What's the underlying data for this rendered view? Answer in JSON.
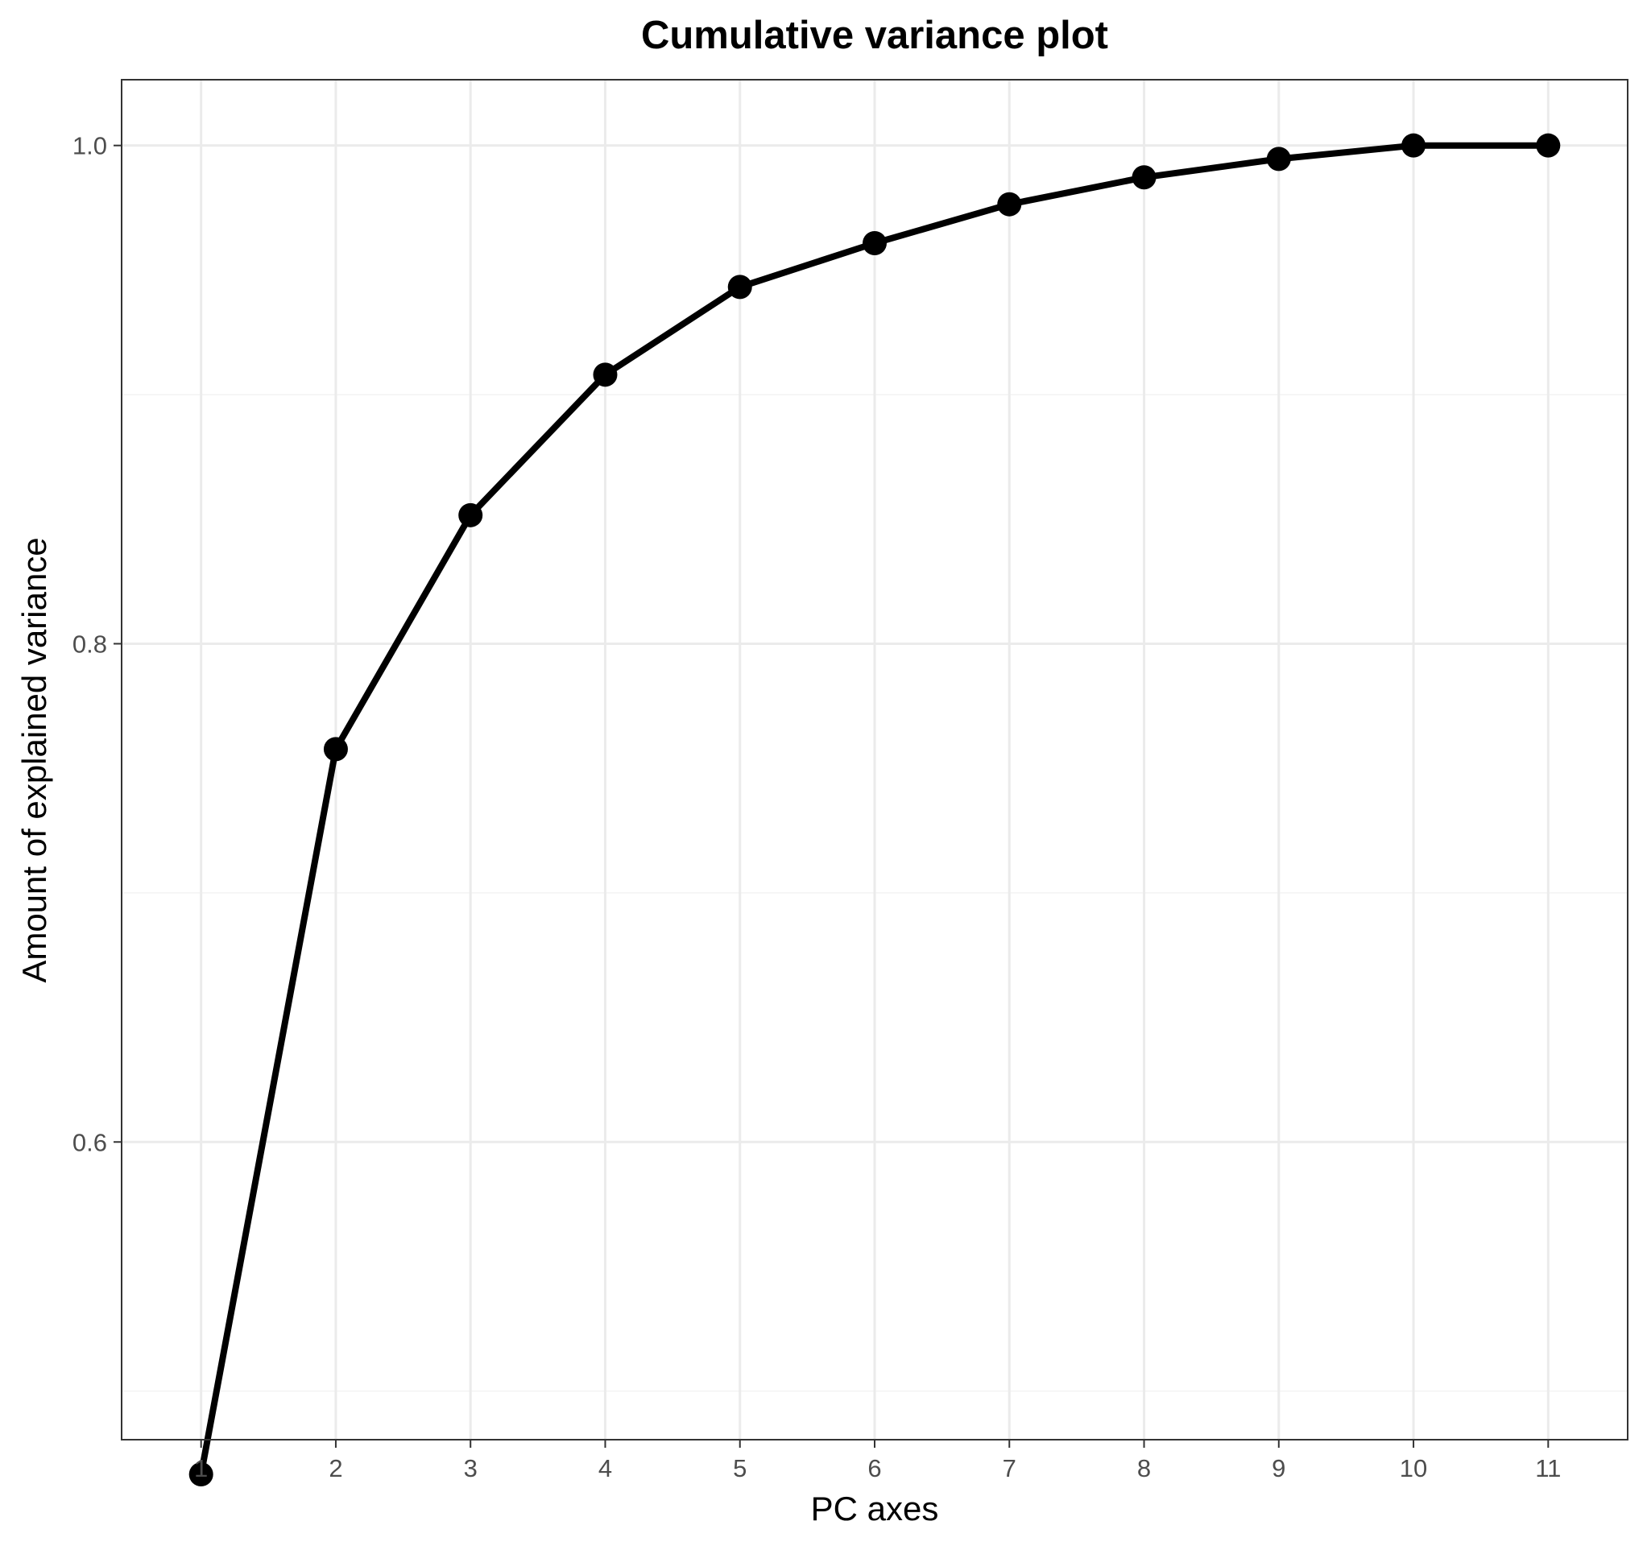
{
  "colors": {
    "background": "#ffffff",
    "panel_border": "#333333",
    "grid_major": "#ebebeb",
    "grid_minor": "#f3f3f3",
    "series": "#000000",
    "tick_text": "#4d4d4d",
    "text": "#000000"
  },
  "chart_data": {
    "type": "line",
    "title": "Cumulative variance plot",
    "xlabel": "PC axes",
    "ylabel": "Amount of explained variance",
    "x": [
      1,
      2,
      3,
      4,
      5,
      6,
      7,
      8,
      9,
      10,
      11
    ],
    "x_tick_labels": [
      "1",
      "2",
      "3",
      "4",
      "5",
      "6",
      "7",
      "8",
      "9",
      "10",
      "11"
    ],
    "xlim": [
      0.41,
      11.59
    ],
    "ylim": [
      0.4805,
      1.0264
    ],
    "y_ticks": [
      0.6,
      0.8,
      1.0
    ],
    "y_tick_labels": [
      "0.6",
      "0.8",
      "1.0"
    ],
    "y_minor_ticks": [
      0.5,
      0.7,
      0.9
    ],
    "grid": true,
    "legend": "none",
    "series": [
      {
        "values": [
          0.4666,
          0.7577,
          0.8516,
          0.908,
          0.9432,
          0.9608,
          0.9764,
          0.9872,
          0.9946,
          1.0,
          1.0
        ],
        "markers": true
      }
    ]
  }
}
